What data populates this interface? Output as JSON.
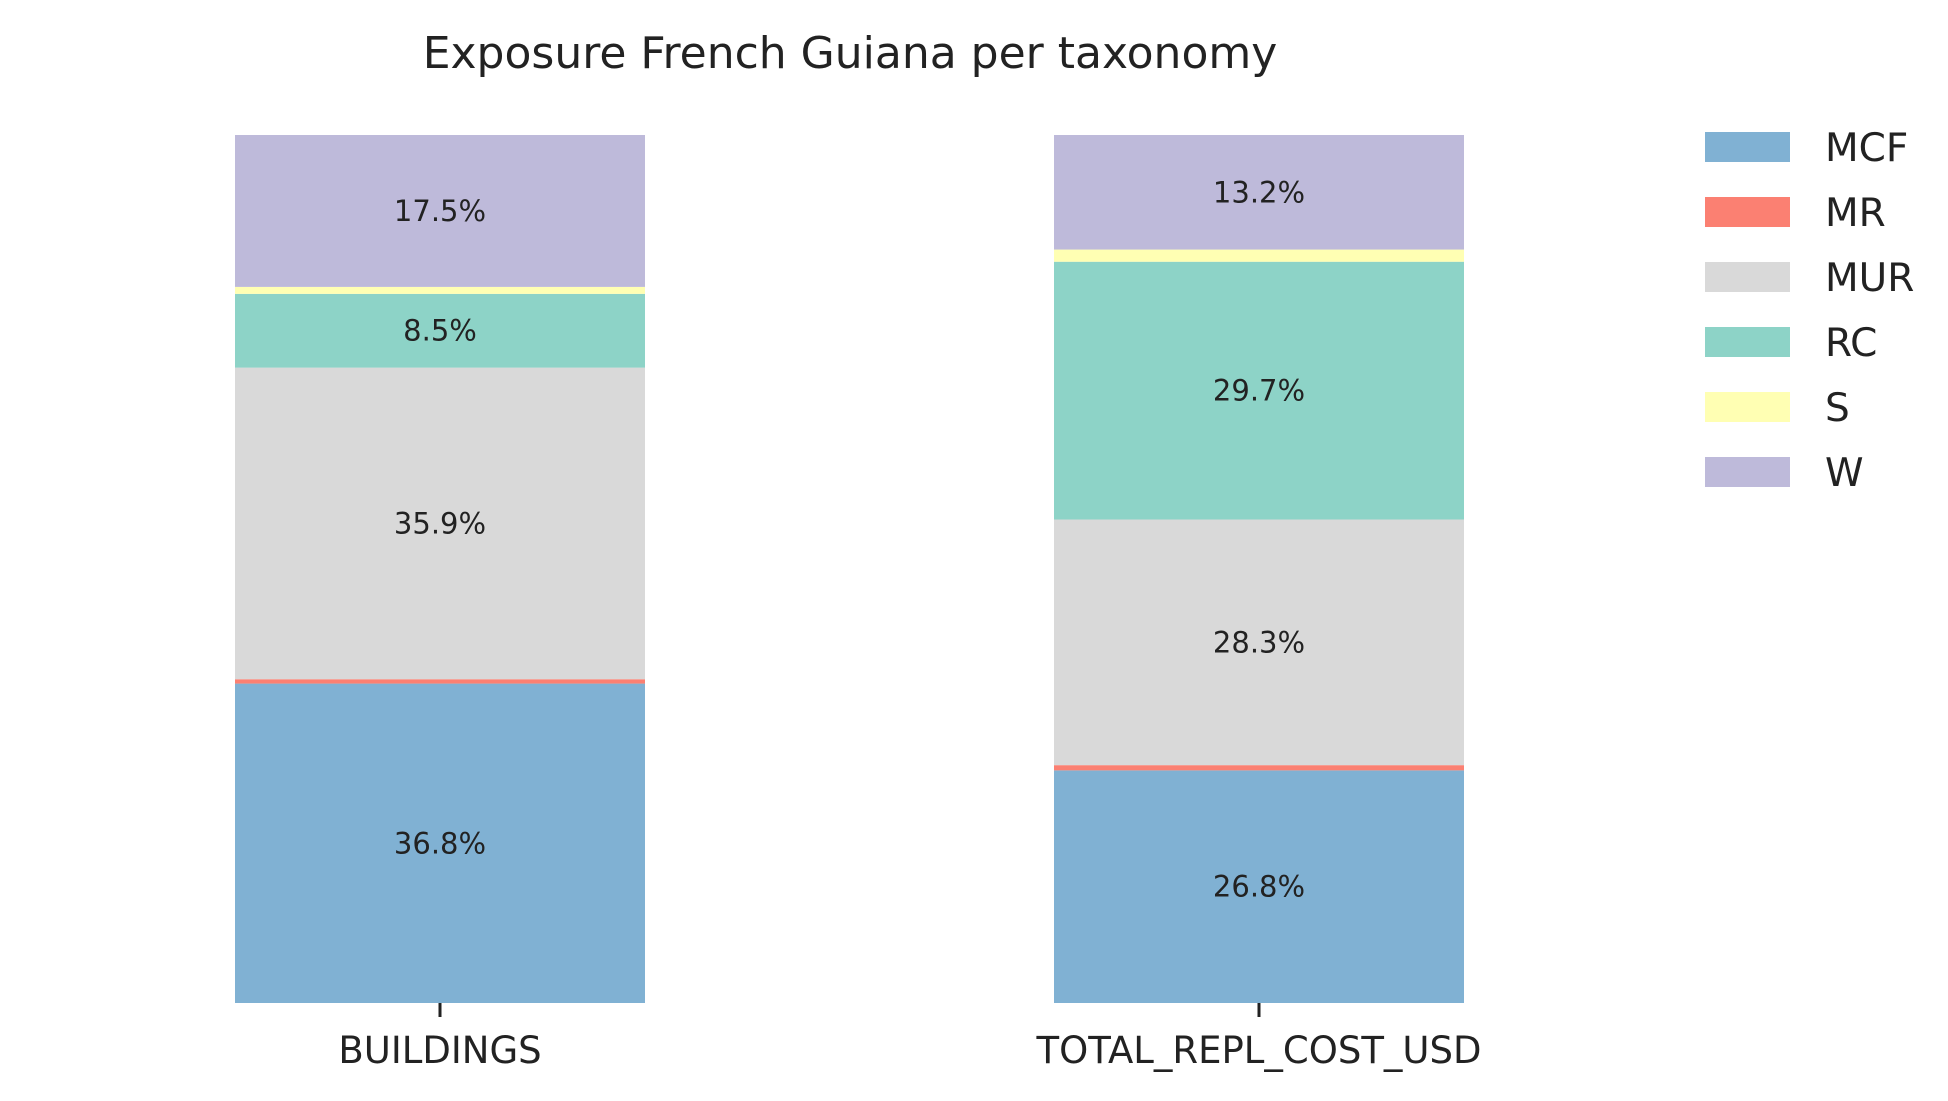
{
  "chart_data": {
    "type": "bar",
    "stacked": true,
    "normalized": true,
    "title": "Exposure French Guiana per taxonomy",
    "xlabel": "",
    "ylabel": "",
    "ylim": [
      0,
      100
    ],
    "grid": false,
    "legend_position": "top-right",
    "categories": [
      "BUILDINGS",
      "TOTAL_REPL_COST_USD"
    ],
    "series": [
      {
        "name": "MCF",
        "color": "#80b1d3",
        "values": [
          36.8,
          26.8
        ],
        "labels": [
          "36.8%",
          "26.8%"
        ]
      },
      {
        "name": "MR",
        "color": "#fb8072",
        "values": [
          0.5,
          0.6
        ],
        "labels": [
          "",
          ""
        ]
      },
      {
        "name": "MUR",
        "color": "#d9d9d9",
        "values": [
          35.9,
          28.3
        ],
        "labels": [
          "35.9%",
          "28.3%"
        ]
      },
      {
        "name": "RC",
        "color": "#8dd3c7",
        "values": [
          8.5,
          29.7
        ],
        "labels": [
          "8.5%",
          "29.7%"
        ]
      },
      {
        "name": "S",
        "color": "#ffffb3",
        "values": [
          0.8,
          1.4
        ],
        "labels": [
          "",
          ""
        ]
      },
      {
        "name": "W",
        "color": "#bebada",
        "values": [
          17.5,
          13.2
        ],
        "labels": [
          "17.5%",
          "13.2%"
        ]
      }
    ]
  }
}
